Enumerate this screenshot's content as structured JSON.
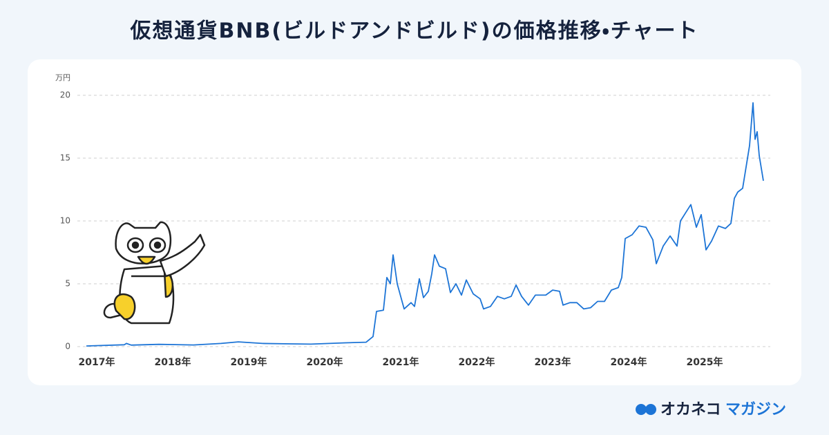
{
  "chart_data": {
    "type": "line",
    "title": "仮想通貨BNB(ビルドアンドビルド)の価格推移・チャート",
    "y_label": "万円",
    "color": "#1c74d6",
    "grid": true,
    "xlim": [
      2017,
      2026
    ],
    "ylim": [
      0,
      20
    ],
    "yticks": [
      0,
      5,
      10,
      15,
      20
    ],
    "xticks": [
      {
        "value": 2017,
        "label": "2017年"
      },
      {
        "value": 2018,
        "label": "2018年"
      },
      {
        "value": 2019,
        "label": "2019年"
      },
      {
        "value": 2020,
        "label": "2020年"
      },
      {
        "value": 2021,
        "label": "2021年"
      },
      {
        "value": 2022,
        "label": "2022年"
      },
      {
        "value": 2023,
        "label": "2023年"
      },
      {
        "value": 2024,
        "label": "2024年"
      },
      {
        "value": 2025,
        "label": "2025年"
      }
    ],
    "x": [
      2017.045,
      2017.545,
      2017.573,
      2017.636,
      2018.0,
      2018.455,
      2018.818,
      2019.045,
      2019.364,
      2019.727,
      2020.0,
      2020.455,
      2020.727,
      2020.818,
      2020.864,
      2020.955,
      2021.0,
      2021.045,
      2021.082,
      2021.136,
      2021.182,
      2021.227,
      2021.318,
      2021.364,
      2021.427,
      2021.482,
      2021.545,
      2021.591,
      2021.627,
      2021.691,
      2021.773,
      2021.836,
      2021.909,
      2021.982,
      2022.045,
      2022.136,
      2022.227,
      2022.273,
      2022.364,
      2022.455,
      2022.545,
      2022.636,
      2022.7,
      2022.773,
      2022.864,
      2022.955,
      2023.091,
      2023.182,
      2023.273,
      2023.318,
      2023.409,
      2023.5,
      2023.591,
      2023.682,
      2023.773,
      2023.864,
      2023.955,
      2024.045,
      2024.091,
      2024.136,
      2024.227,
      2024.318,
      2024.409,
      2024.5,
      2024.545,
      2024.636,
      2024.727,
      2024.818,
      2024.864,
      2024.936,
      2025.0,
      2025.073,
      2025.136,
      2025.2,
      2025.273,
      2025.364,
      2025.455,
      2025.527,
      2025.573,
      2025.618,
      2025.682,
      2025.773,
      2025.818,
      2025.845,
      2025.873,
      2025.9,
      2025.955
    ],
    "values": [
      0.05,
      0.15,
      0.25,
      0.12,
      0.18,
      0.13,
      0.25,
      0.38,
      0.25,
      0.22,
      0.2,
      0.3,
      0.35,
      0.8,
      2.8,
      2.9,
      5.5,
      5.0,
      7.3,
      5.0,
      4.0,
      3.0,
      3.5,
      3.2,
      5.4,
      3.9,
      4.4,
      5.8,
      7.3,
      6.4,
      6.2,
      4.3,
      5.0,
      4.1,
      5.3,
      4.2,
      3.8,
      3.0,
      3.2,
      4.0,
      3.8,
      4.0,
      4.9,
      4.0,
      3.3,
      4.1,
      4.1,
      4.5,
      4.4,
      3.3,
      3.5,
      3.5,
      3.0,
      3.1,
      3.6,
      3.6,
      4.5,
      4.7,
      5.5,
      8.6,
      8.9,
      9.6,
      9.5,
      8.5,
      6.6,
      8.0,
      8.8,
      8.0,
      10.0,
      10.7,
      11.3,
      9.5,
      10.5,
      7.7,
      8.4,
      9.6,
      9.4,
      9.8,
      11.8,
      12.3,
      12.6,
      16.0,
      19.4,
      16.5,
      17.1,
      15.2,
      13.2
    ]
  },
  "brand": {
    "name": "オカネコ",
    "sub": "マガジン"
  }
}
